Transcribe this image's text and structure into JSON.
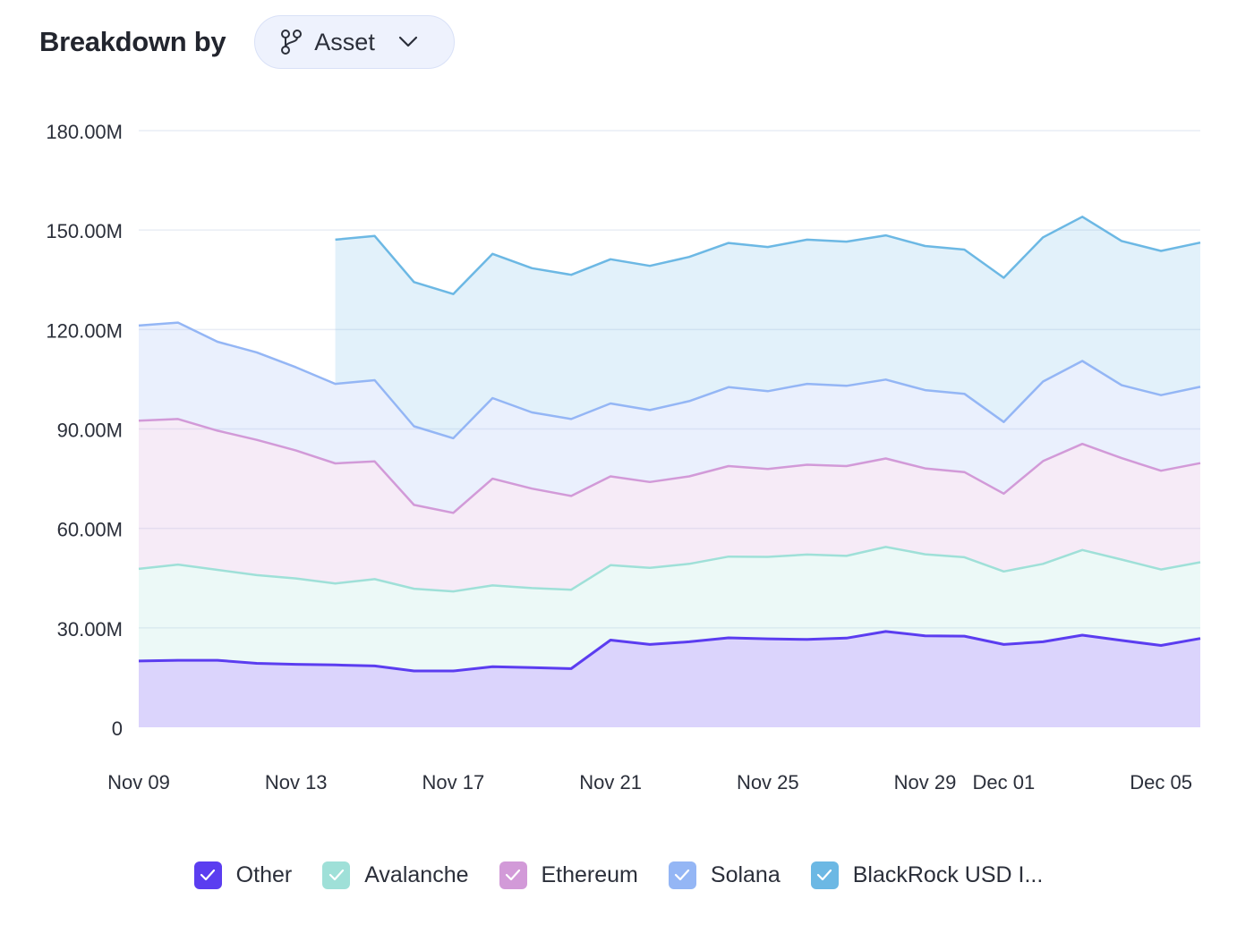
{
  "header": {
    "title": "Breakdown by",
    "dropdown_value": "Asset",
    "dropdown_icon": "branch-icon",
    "dropdown_chevron": "chevron-down-icon"
  },
  "colors": {
    "Other": "#5b3df0",
    "Avalanche": "#9fe0d8",
    "Ethereum": "#d29ad8",
    "Solana": "#94b6f5",
    "BlackRock": "#6cb8e4"
  },
  "chart_data": {
    "type": "area",
    "stacked": true,
    "x": [
      "Nov 09",
      "Nov 10",
      "Nov 11",
      "Nov 12",
      "Nov 13",
      "Nov 14",
      "Nov 15",
      "Nov 16",
      "Nov 17",
      "Nov 18",
      "Nov 19",
      "Nov 20",
      "Nov 21",
      "Nov 22",
      "Nov 23",
      "Nov 24",
      "Nov 25",
      "Nov 26",
      "Nov 27",
      "Nov 28",
      "Nov 29",
      "Nov 30",
      "Dec 01",
      "Dec 02",
      "Dec 03",
      "Dec 04",
      "Dec 05",
      "Dec 06"
    ],
    "x_ticks": [
      "Nov 09",
      "Nov 13",
      "Nov 17",
      "Nov 21",
      "Nov 25",
      "Nov 29",
      "Dec 01",
      "Dec 05"
    ],
    "y_ticks": [
      "0",
      "30.00M",
      "60.00M",
      "90.00M",
      "120.00M",
      "150.00M",
      "180.00M"
    ],
    "ylim": [
      0,
      180
    ],
    "grid": true,
    "legend_position": "bottom",
    "series": [
      {
        "name": "Other",
        "color": "#5b3df0",
        "values": [
          20.0,
          20.2,
          20.2,
          19.3,
          19.0,
          18.8,
          18.5,
          17.0,
          17.0,
          18.3,
          18.0,
          17.7,
          26.3,
          25.0,
          25.8,
          27.0,
          26.7,
          26.5,
          26.9,
          28.9,
          27.6,
          27.5,
          25.0,
          25.8,
          27.8,
          26.2,
          24.7,
          26.8
        ]
      },
      {
        "name": "Avalanche",
        "color": "#9fe0d8",
        "values": [
          27.8,
          28.9,
          27.3,
          26.6,
          25.9,
          24.6,
          26.2,
          24.8,
          24.0,
          24.5,
          24.0,
          23.8,
          22.6,
          23.1,
          23.5,
          24.5,
          24.7,
          25.6,
          24.8,
          25.5,
          24.6,
          23.8,
          22.0,
          23.5,
          25.7,
          24.4,
          22.9,
          23.0
        ]
      },
      {
        "name": "Ethereum",
        "color": "#d29ad8",
        "values": [
          44.7,
          43.9,
          42.0,
          40.8,
          38.6,
          36.2,
          35.5,
          25.3,
          23.7,
          32.2,
          30.0,
          28.3,
          26.8,
          25.9,
          26.4,
          27.3,
          26.5,
          27.1,
          27.1,
          26.7,
          25.9,
          25.7,
          23.5,
          31.0,
          32.0,
          30.6,
          29.8,
          29.9
        ]
      },
      {
        "name": "Solana",
        "color": "#94b6f5",
        "values": [
          28.7,
          29.1,
          26.8,
          26.4,
          25.1,
          24.0,
          24.5,
          23.7,
          22.5,
          24.3,
          23.0,
          23.2,
          22.0,
          21.7,
          22.7,
          23.8,
          23.5,
          24.4,
          24.2,
          23.8,
          23.6,
          23.6,
          21.6,
          24.0,
          25.0,
          22.0,
          22.8,
          23.0
        ]
      },
      {
        "name": "BlackRock USD I...",
        "color": "#6cb8e4",
        "values": [
          0,
          0,
          0,
          0,
          0,
          43.5,
          43.5,
          43.5,
          43.5,
          43.5,
          43.5,
          43.5,
          43.5,
          43.5,
          43.5,
          43.5,
          43.5,
          43.5,
          43.5,
          43.5,
          43.5,
          43.5,
          43.5,
          43.5,
          43.5,
          43.5,
          43.5,
          43.5
        ],
        "starts_at": "Nov 14"
      }
    ]
  },
  "legend": {
    "items": [
      {
        "label": "Other",
        "color": "#5b3df0",
        "checked": true
      },
      {
        "label": "Avalanche",
        "color": "#9fe0d8",
        "checked": true
      },
      {
        "label": "Ethereum",
        "color": "#d29ad8",
        "checked": true
      },
      {
        "label": "Solana",
        "color": "#94b6f5",
        "checked": true
      },
      {
        "label": "BlackRock USD I...",
        "color": "#6cb8e4",
        "checked": true
      }
    ]
  }
}
